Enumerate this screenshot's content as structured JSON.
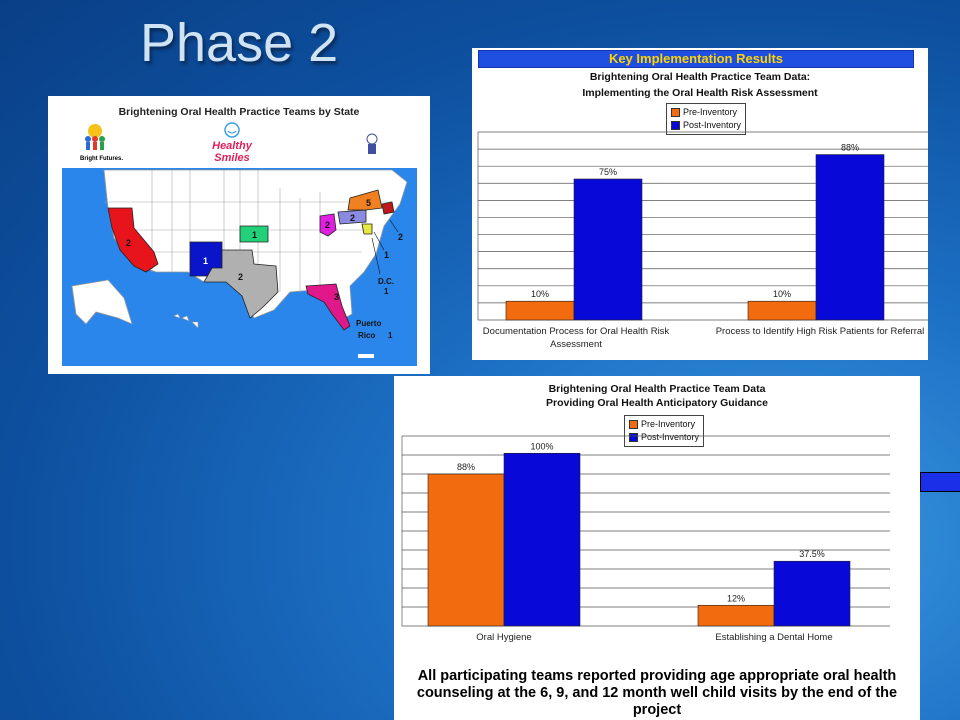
{
  "slide": {
    "title": "Phase 2"
  },
  "map": {
    "title": "Brightening Oral Health Practice Teams by State",
    "logos": {
      "bright_futures": "Bright Futures.",
      "healthy_smiles": "Healthy Smiles"
    },
    "state_counts": [
      {
        "state": "California",
        "label": "2",
        "color": "#e8141c"
      },
      {
        "state": "New Mexico",
        "label": "1",
        "color": "#0a14c8"
      },
      {
        "state": "Texas",
        "label": "2",
        "color": "#b0b0b0"
      },
      {
        "state": "Kansas",
        "label": "1",
        "color": "#22d07a"
      },
      {
        "state": "Ohio",
        "label": "2",
        "color": "#e020e0"
      },
      {
        "state": "Pennsylvania",
        "label": "2",
        "color": "#8a8ae0"
      },
      {
        "state": "New York",
        "label": "5",
        "color": "#f08020"
      },
      {
        "state": "Florida",
        "label": "3",
        "color": "#e0188a"
      },
      {
        "state": "Northeast",
        "label": "2",
        "color": "#c01818"
      },
      {
        "state": "Virginia",
        "label": "1",
        "color": "#e8e840"
      },
      {
        "state": "Delaware",
        "label": "1",
        "color": "#2040ff"
      }
    ],
    "callouts": {
      "dc": "D.C.",
      "dc_count": "1",
      "pr": "Puerto Rico",
      "pr_count": "1"
    }
  },
  "chart1": {
    "banner": "Key Implementation Results",
    "title_line1": "Brightening Oral Health Practice Team Data:",
    "title_line2": "Implementing the Oral Health Risk Assessment"
  },
  "chart2": {
    "title_line1": "Brightening Oral Health Practice Team Data",
    "title_line2": "Providing Oral Health Anticipatory Guidance",
    "note": "All participating teams reported providing age appropriate oral health counseling at the 6, 9, and 12 month  well child visits by the end of the project"
  },
  "colors": {
    "pre": "#f26b0f",
    "post": "#0808d8"
  },
  "chart_data": [
    {
      "type": "bar",
      "title": "Brightening Oral Health Practice Team Data: Implementing the Oral Health Risk Assessment",
      "categories": [
        "Documentation Process for Oral Health Risk Assessment",
        "Process to Identify High Risk Patients for Referral"
      ],
      "series": [
        {
          "name": "Pre-Inventory",
          "values": [
            10,
            10
          ],
          "labels": [
            "10%",
            "10%"
          ]
        },
        {
          "name": "Post-Inventory",
          "values": [
            75,
            88
          ],
          "labels": [
            "75%",
            "88%"
          ]
        }
      ],
      "ylim": [
        0,
        100
      ],
      "grid": true,
      "legend": "top-center"
    },
    {
      "type": "bar",
      "title": "Brightening Oral Health Practice Team Data Providing Oral Health Anticipatory Guidance",
      "categories": [
        "Oral Hygiene",
        "Establishing a Dental Home"
      ],
      "series": [
        {
          "name": "Pre-Inventory",
          "values": [
            88,
            12
          ],
          "labels": [
            "88%",
            "12%"
          ]
        },
        {
          "name": "Post-Inventory",
          "values": [
            100,
            37.5
          ],
          "labels": [
            "100%",
            "37.5%"
          ]
        }
      ],
      "ylim": [
        0,
        110
      ],
      "grid": true,
      "legend": "top-center"
    }
  ]
}
